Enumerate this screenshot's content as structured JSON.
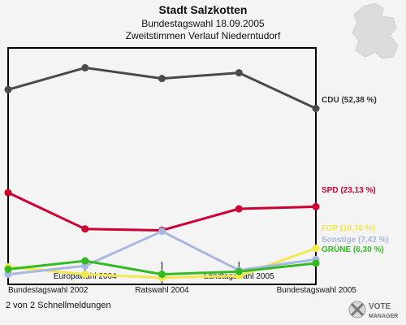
{
  "header": {
    "title": "Stadt Salzkotten",
    "subtitle1": "Bundestagswahl 18.09.2005",
    "subtitle2": "Zweitstimmen Verlauf Niederntudorf"
  },
  "footer": {
    "note": "2 von 2 Schnellmeldungen",
    "logo_line1": "VOTE",
    "logo_line2": "MANAGER"
  },
  "chart_data": {
    "type": "line",
    "title": "Stadt Salzkotten",
    "categories": [
      "Bundestagswahl 2002",
      "Europawahl 2004",
      "Ratswahl 2004",
      "Landtagswahl 2005",
      "Bundestagswahl 2005"
    ],
    "ylim": [
      0,
      60
    ],
    "series": [
      {
        "name": "CDU",
        "label": "CDU (52,38 %)",
        "color": "#4a4a4a",
        "values": [
          58.0,
          64.5,
          61.3,
          63.0,
          52.38
        ]
      },
      {
        "name": "SPD",
        "label": "SPD (23,13 %)",
        "color": "#cc0033",
        "values": [
          27.3,
          16.5,
          16.1,
          22.5,
          23.13
        ]
      },
      {
        "name": "FDP",
        "label": "FDP (10,76 %)",
        "color": "#f2e94e",
        "values": [
          5.2,
          3.0,
          2.0,
          2.5,
          10.76
        ]
      },
      {
        "name": "Sonstige",
        "label": "Sonstige (7,42 %)",
        "color": "#a8b8e0",
        "values": [
          3.0,
          5.5,
          15.8,
          4.2,
          7.42
        ]
      },
      {
        "name": "GRÜNE",
        "label": "GRÜNE (6,30 %)",
        "color": "#33bb22",
        "values": [
          4.5,
          7.0,
          3.0,
          3.8,
          6.3
        ]
      }
    ]
  }
}
